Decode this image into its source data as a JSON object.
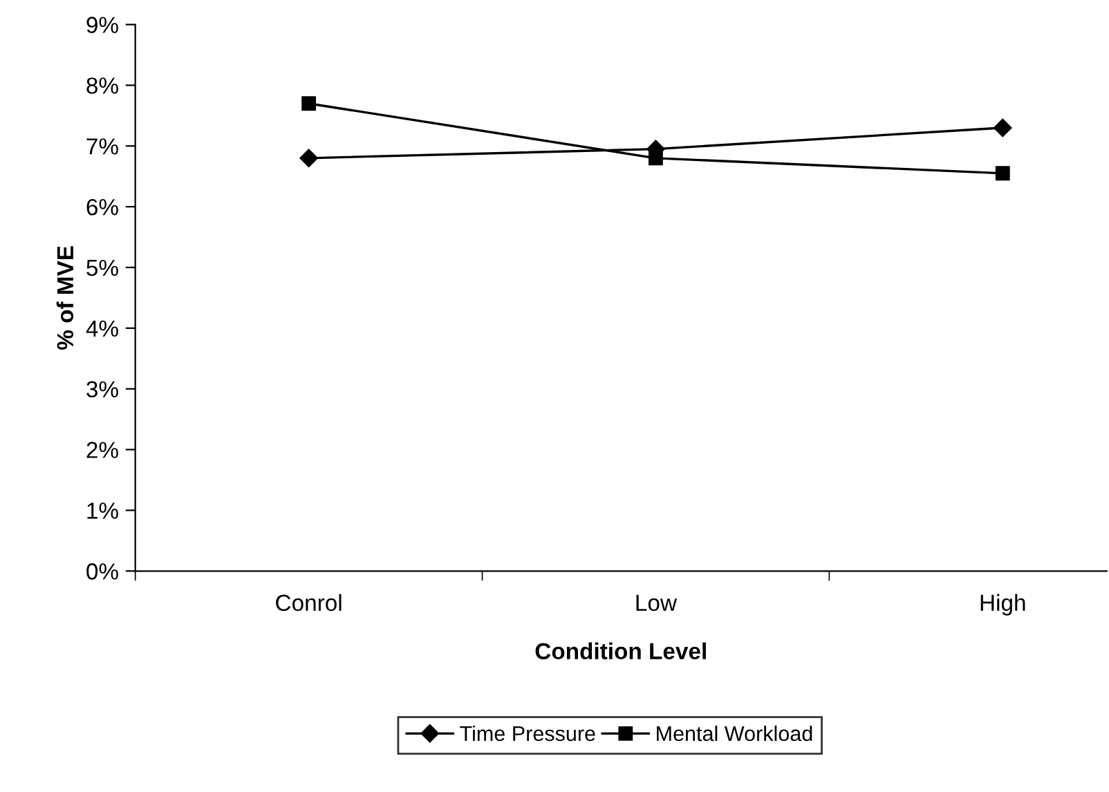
{
  "chart_data": {
    "type": "line",
    "xlabel": "Condition Level",
    "ylabel": "% of MVE",
    "categories": [
      "Conrol",
      "Low",
      "High"
    ],
    "series": [
      {
        "name": "Time Pressure",
        "color": "#000000",
        "marker": "diamond",
        "values": [
          6.8,
          6.95,
          7.3
        ]
      },
      {
        "name": "Mental Workload",
        "color": "#000000",
        "marker": "square",
        "values": [
          7.7,
          6.8,
          6.55
        ]
      }
    ],
    "ylim": [
      0,
      9
    ],
    "yticks": [
      {
        "value": 0,
        "label": "0%"
      },
      {
        "value": 1,
        "label": "1%"
      },
      {
        "value": 2,
        "label": "2%"
      },
      {
        "value": 3,
        "label": "3%"
      },
      {
        "value": 4,
        "label": "4%"
      },
      {
        "value": 5,
        "label": "5%"
      },
      {
        "value": 6,
        "label": "6%"
      },
      {
        "value": 7,
        "label": "7%"
      },
      {
        "value": 8,
        "label": "8%"
      },
      {
        "value": 9,
        "label": "9%"
      }
    ],
    "grid": false,
    "legend": "bottom",
    "line_style": "solid"
  }
}
